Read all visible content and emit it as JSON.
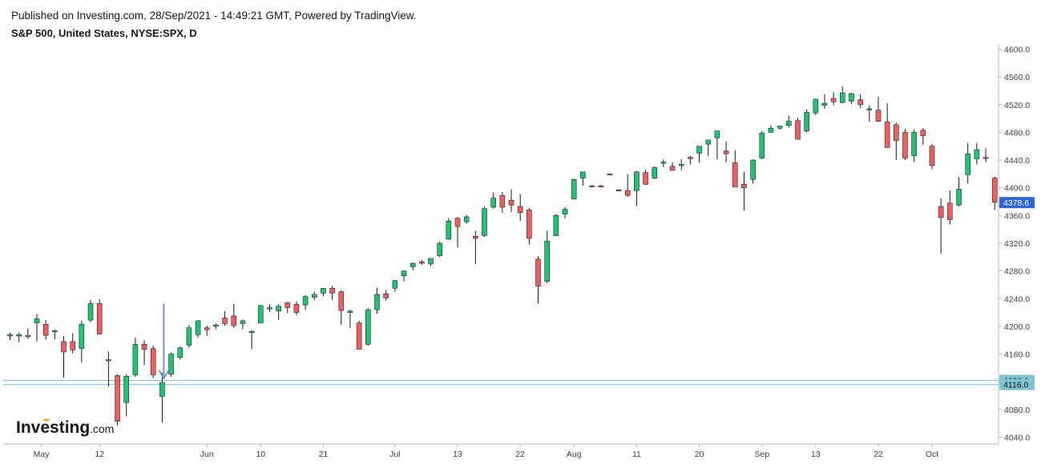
{
  "header": {
    "published": "Published on Investing.com, 28/Sep/2021 - 14:49:21 GMT, Powered by TradingView.",
    "symbol": "S&P 500, United States, NYSE:SPX, D"
  },
  "logo": {
    "main": "Investing",
    "suffix": ".com"
  },
  "colors": {
    "up": "#22c274",
    "down": "#ef5f5f",
    "wick": "#131722",
    "hline": "#7ec5cf",
    "current_tag": "#2f66d6",
    "level_tag": "#7ec5cf",
    "arrow": "#7b8fd1",
    "axis": "#b4b7bf"
  },
  "chart_data": {
    "type": "candlestick",
    "ylim": [
      4035,
      4610
    ],
    "y_ticks": [
      "4040.0",
      "4080.0",
      "4120.0",
      "4160.0",
      "4200.0",
      "4240.0",
      "4280.0",
      "4320.0",
      "4360.0",
      "4400.0",
      "4440.0",
      "4480.0",
      "4520.0",
      "4560.0",
      "4600.0"
    ],
    "x_labels": [
      {
        "i": 3.5,
        "label": "May"
      },
      {
        "i": 10,
        "label": "12"
      },
      {
        "i": 22,
        "label": "Jun"
      },
      {
        "i": 28,
        "label": "10"
      },
      {
        "i": 35,
        "label": "21"
      },
      {
        "i": 43,
        "label": "Jul"
      },
      {
        "i": 50,
        "label": "13"
      },
      {
        "i": 57,
        "label": "22"
      },
      {
        "i": 63,
        "label": "Aug"
      },
      {
        "i": 70,
        "label": "11"
      },
      {
        "i": 77,
        "label": "20"
      },
      {
        "i": 84,
        "label": "Sep"
      },
      {
        "i": 90,
        "label": "13"
      },
      {
        "i": 97,
        "label": "22"
      },
      {
        "i": 103,
        "label": "Oct"
      }
    ],
    "candles": [
      {
        "o": 4186,
        "h": 4191,
        "l": 4180,
        "c": 4188
      },
      {
        "o": 4186,
        "h": 4191,
        "l": 4177,
        "c": 4188
      },
      {
        "o": 4187,
        "h": 4197,
        "l": 4182,
        "c": 4185
      },
      {
        "o": 4205,
        "h": 4218,
        "l": 4178,
        "c": 4211
      },
      {
        "o": 4203,
        "h": 4209,
        "l": 4181,
        "c": 4187
      },
      {
        "o": 4192,
        "h": 4195,
        "l": 4181,
        "c": 4194
      },
      {
        "o": 4178,
        "h": 4186,
        "l": 4126,
        "c": 4163
      },
      {
        "o": 4178,
        "h": 4190,
        "l": 4161,
        "c": 4166
      },
      {
        "o": 4168,
        "h": 4208,
        "l": 4148,
        "c": 4203
      },
      {
        "o": 4209,
        "h": 4238,
        "l": 4206,
        "c": 4233
      },
      {
        "o": 4233,
        "h": 4239,
        "l": 4188,
        "c": 4189
      },
      {
        "o": 4152,
        "h": 4164,
        "l": 4113,
        "c": 4151
      },
      {
        "o": 4129,
        "h": 4131,
        "l": 4057,
        "c": 4063
      },
      {
        "o": 4090,
        "h": 4131,
        "l": 4070,
        "c": 4128
      },
      {
        "o": 4130,
        "h": 4184,
        "l": 4127,
        "c": 4174
      },
      {
        "o": 4174,
        "h": 4180,
        "l": 4144,
        "c": 4167
      },
      {
        "o": 4168,
        "h": 4172,
        "l": 4125,
        "c": 4130
      },
      {
        "o": 4099,
        "h": 4133,
        "l": 4061,
        "c": 4119
      },
      {
        "o": 4131,
        "h": 4162,
        "l": 4127,
        "c": 4160
      },
      {
        "o": 4155,
        "h": 4171,
        "l": 4152,
        "c": 4169
      },
      {
        "o": 4173,
        "h": 4202,
        "l": 4169,
        "c": 4198
      },
      {
        "o": 4188,
        "h": 4209,
        "l": 4184,
        "c": 4208
      },
      {
        "o": 4198,
        "h": 4201,
        "l": 4186,
        "c": 4195
      },
      {
        "o": 4200,
        "h": 4204,
        "l": 4196,
        "c": 4202
      },
      {
        "o": 4212,
        "h": 4222,
        "l": 4201,
        "c": 4204
      },
      {
        "o": 4215,
        "h": 4232,
        "l": 4198,
        "c": 4201
      },
      {
        "o": 4204,
        "h": 4210,
        "l": 4196,
        "c": 4208
      },
      {
        "o": 4191,
        "h": 4194,
        "l": 4167,
        "c": 4193
      },
      {
        "o": 4205,
        "h": 4231,
        "l": 4204,
        "c": 4230
      },
      {
        "o": 4225,
        "h": 4232,
        "l": 4221,
        "c": 4227
      },
      {
        "o": 4222,
        "h": 4232,
        "l": 4209,
        "c": 4229
      },
      {
        "o": 4234,
        "h": 4235,
        "l": 4219,
        "c": 4227
      },
      {
        "o": 4232,
        "h": 4236,
        "l": 4216,
        "c": 4220
      },
      {
        "o": 4231,
        "h": 4245,
        "l": 4224,
        "c": 4243
      },
      {
        "o": 4242,
        "h": 4250,
        "l": 4238,
        "c": 4246
      },
      {
        "o": 4248,
        "h": 4252,
        "l": 4243,
        "c": 4255
      },
      {
        "o": 4255,
        "h": 4258,
        "l": 4238,
        "c": 4248
      },
      {
        "o": 4250,
        "h": 4252,
        "l": 4202,
        "c": 4223
      },
      {
        "o": 4220,
        "h": 4224,
        "l": 4198,
        "c": 4222
      },
      {
        "o": 4205,
        "h": 4208,
        "l": 4168,
        "c": 4167
      },
      {
        "o": 4174,
        "h": 4226,
        "l": 4172,
        "c": 4224
      },
      {
        "o": 4224,
        "h": 4256,
        "l": 4218,
        "c": 4246
      },
      {
        "o": 4247,
        "h": 4253,
        "l": 4237,
        "c": 4241
      },
      {
        "o": 4255,
        "h": 4267,
        "l": 4250,
        "c": 4266
      },
      {
        "o": 4273,
        "h": 4279,
        "l": 4265,
        "c": 4280
      },
      {
        "o": 4286,
        "h": 4292,
        "l": 4281,
        "c": 4291
      },
      {
        "o": 4293,
        "h": 4296,
        "l": 4289,
        "c": 4291
      },
      {
        "o": 4290,
        "h": 4296,
        "l": 4287,
        "c": 4298
      },
      {
        "o": 4302,
        "h": 4322,
        "l": 4300,
        "c": 4320
      },
      {
        "o": 4326,
        "h": 4356,
        "l": 4325,
        "c": 4352
      },
      {
        "o": 4356,
        "h": 4358,
        "l": 4314,
        "c": 4344
      },
      {
        "o": 4351,
        "h": 4361,
        "l": 4348,
        "c": 4358
      },
      {
        "o": 4330,
        "h": 4338,
        "l": 4290,
        "c": 4327
      },
      {
        "o": 4331,
        "h": 4373,
        "l": 4329,
        "c": 4370
      },
      {
        "o": 4372,
        "h": 4393,
        "l": 4370,
        "c": 4385
      },
      {
        "o": 4389,
        "h": 4394,
        "l": 4364,
        "c": 4372
      },
      {
        "o": 4382,
        "h": 4398,
        "l": 4365,
        "c": 4375
      },
      {
        "o": 4373,
        "h": 4391,
        "l": 4352,
        "c": 4364
      },
      {
        "o": 4368,
        "h": 4371,
        "l": 4318,
        "c": 4327
      },
      {
        "o": 4297,
        "h": 4301,
        "l": 4233,
        "c": 4258
      },
      {
        "o": 4265,
        "h": 4338,
        "l": 4262,
        "c": 4323
      },
      {
        "o": 4331,
        "h": 4362,
        "l": 4330,
        "c": 4360
      },
      {
        "o": 4362,
        "h": 4372,
        "l": 4356,
        "c": 4369
      },
      {
        "o": 4384,
        "h": 4413,
        "l": 4383,
        "c": 4412
      },
      {
        "o": 4414,
        "h": 4422,
        "l": 4403,
        "c": 4423
      },
      {
        "o": 4403,
        "h": 4404,
        "l": 4401,
        "c": 4402
      },
      {
        "o": 4403,
        "h": 4404,
        "l": 4401,
        "c": 4402
      },
      {
        "o": 4420,
        "h": 4421,
        "l": 4418,
        "c": 4419
      },
      {
        "o": 4397,
        "h": 4398,
        "l": 4395,
        "c": 4396
      },
      {
        "o": 4396,
        "h": 4420,
        "l": 4387,
        "c": 4389
      },
      {
        "o": 4396,
        "h": 4424,
        "l": 4374,
        "c": 4423
      },
      {
        "o": 4422,
        "h": 4426,
        "l": 4404,
        "c": 4405
      },
      {
        "o": 4414,
        "h": 4431,
        "l": 4412,
        "c": 4429
      },
      {
        "o": 4436,
        "h": 4441,
        "l": 4430,
        "c": 4437
      },
      {
        "o": 4431,
        "h": 4437,
        "l": 4426,
        "c": 4425
      },
      {
        "o": 4432,
        "h": 4441,
        "l": 4425,
        "c": 4434
      },
      {
        "o": 4444,
        "h": 4446,
        "l": 4434,
        "c": 4442
      },
      {
        "o": 4450,
        "h": 4455,
        "l": 4436,
        "c": 4460
      },
      {
        "o": 4463,
        "h": 4466,
        "l": 4446,
        "c": 4469
      },
      {
        "o": 4472,
        "h": 4481,
        "l": 4441,
        "c": 4482
      },
      {
        "o": 4453,
        "h": 4467,
        "l": 4437,
        "c": 4449
      },
      {
        "o": 4436,
        "h": 4454,
        "l": 4401,
        "c": 4401
      },
      {
        "o": 4405,
        "h": 4423,
        "l": 4367,
        "c": 4400
      },
      {
        "o": 4412,
        "h": 4441,
        "l": 4406,
        "c": 4440
      },
      {
        "o": 4443,
        "h": 4482,
        "l": 4441,
        "c": 4479
      },
      {
        "o": 4480,
        "h": 4490,
        "l": 4480,
        "c": 4486
      },
      {
        "o": 4486,
        "h": 4489,
        "l": 4484,
        "c": 4489
      },
      {
        "o": 4490,
        "h": 4504,
        "l": 4487,
        "c": 4496
      },
      {
        "o": 4497,
        "h": 4501,
        "l": 4471,
        "c": 4470
      },
      {
        "o": 4482,
        "h": 4513,
        "l": 4480,
        "c": 4509
      },
      {
        "o": 4508,
        "h": 4525,
        "l": 4505,
        "c": 4528
      },
      {
        "o": 4519,
        "h": 4535,
        "l": 4514,
        "c": 4522
      },
      {
        "o": 4529,
        "h": 4538,
        "l": 4519,
        "c": 4524
      },
      {
        "o": 4523,
        "h": 4546,
        "l": 4522,
        "c": 4537
      },
      {
        "o": 4525,
        "h": 4537,
        "l": 4521,
        "c": 4536
      },
      {
        "o": 4527,
        "h": 4535,
        "l": 4515,
        "c": 4520
      },
      {
        "o": 4514,
        "h": 4519,
        "l": 4495,
        "c": 4514
      },
      {
        "o": 4512,
        "h": 4531,
        "l": 4495,
        "c": 4496
      },
      {
        "o": 4495,
        "h": 4522,
        "l": 4462,
        "c": 4458
      },
      {
        "o": 4491,
        "h": 4494,
        "l": 4440,
        "c": 4468
      },
      {
        "o": 4480,
        "h": 4485,
        "l": 4440,
        "c": 4443
      },
      {
        "o": 4446,
        "h": 4484,
        "l": 4437,
        "c": 4480
      },
      {
        "o": 4483,
        "h": 4486,
        "l": 4462,
        "c": 4475
      },
      {
        "o": 4460,
        "h": 4463,
        "l": 4427,
        "c": 4432
      },
      {
        "o": 4373,
        "h": 4385,
        "l": 4305,
        "c": 4357
      },
      {
        "o": 4378,
        "h": 4396,
        "l": 4347,
        "c": 4354
      },
      {
        "o": 4375,
        "h": 4415,
        "l": 4373,
        "c": 4398
      },
      {
        "o": 4419,
        "h": 4465,
        "l": 4406,
        "c": 4449
      },
      {
        "o": 4442,
        "h": 4465,
        "l": 4434,
        "c": 4455
      },
      {
        "o": 4444,
        "h": 4457,
        "l": 4437,
        "c": 4443
      },
      {
        "o": 4414,
        "h": 4416,
        "l": 4368,
        "c": 4379
      }
    ],
    "current_price": "4378.6",
    "levels": [
      "4122.0",
      "4116.0"
    ],
    "marker": {
      "type": "arrow-down",
      "at_index": 17,
      "from": 4233,
      "to": 4125
    }
  }
}
